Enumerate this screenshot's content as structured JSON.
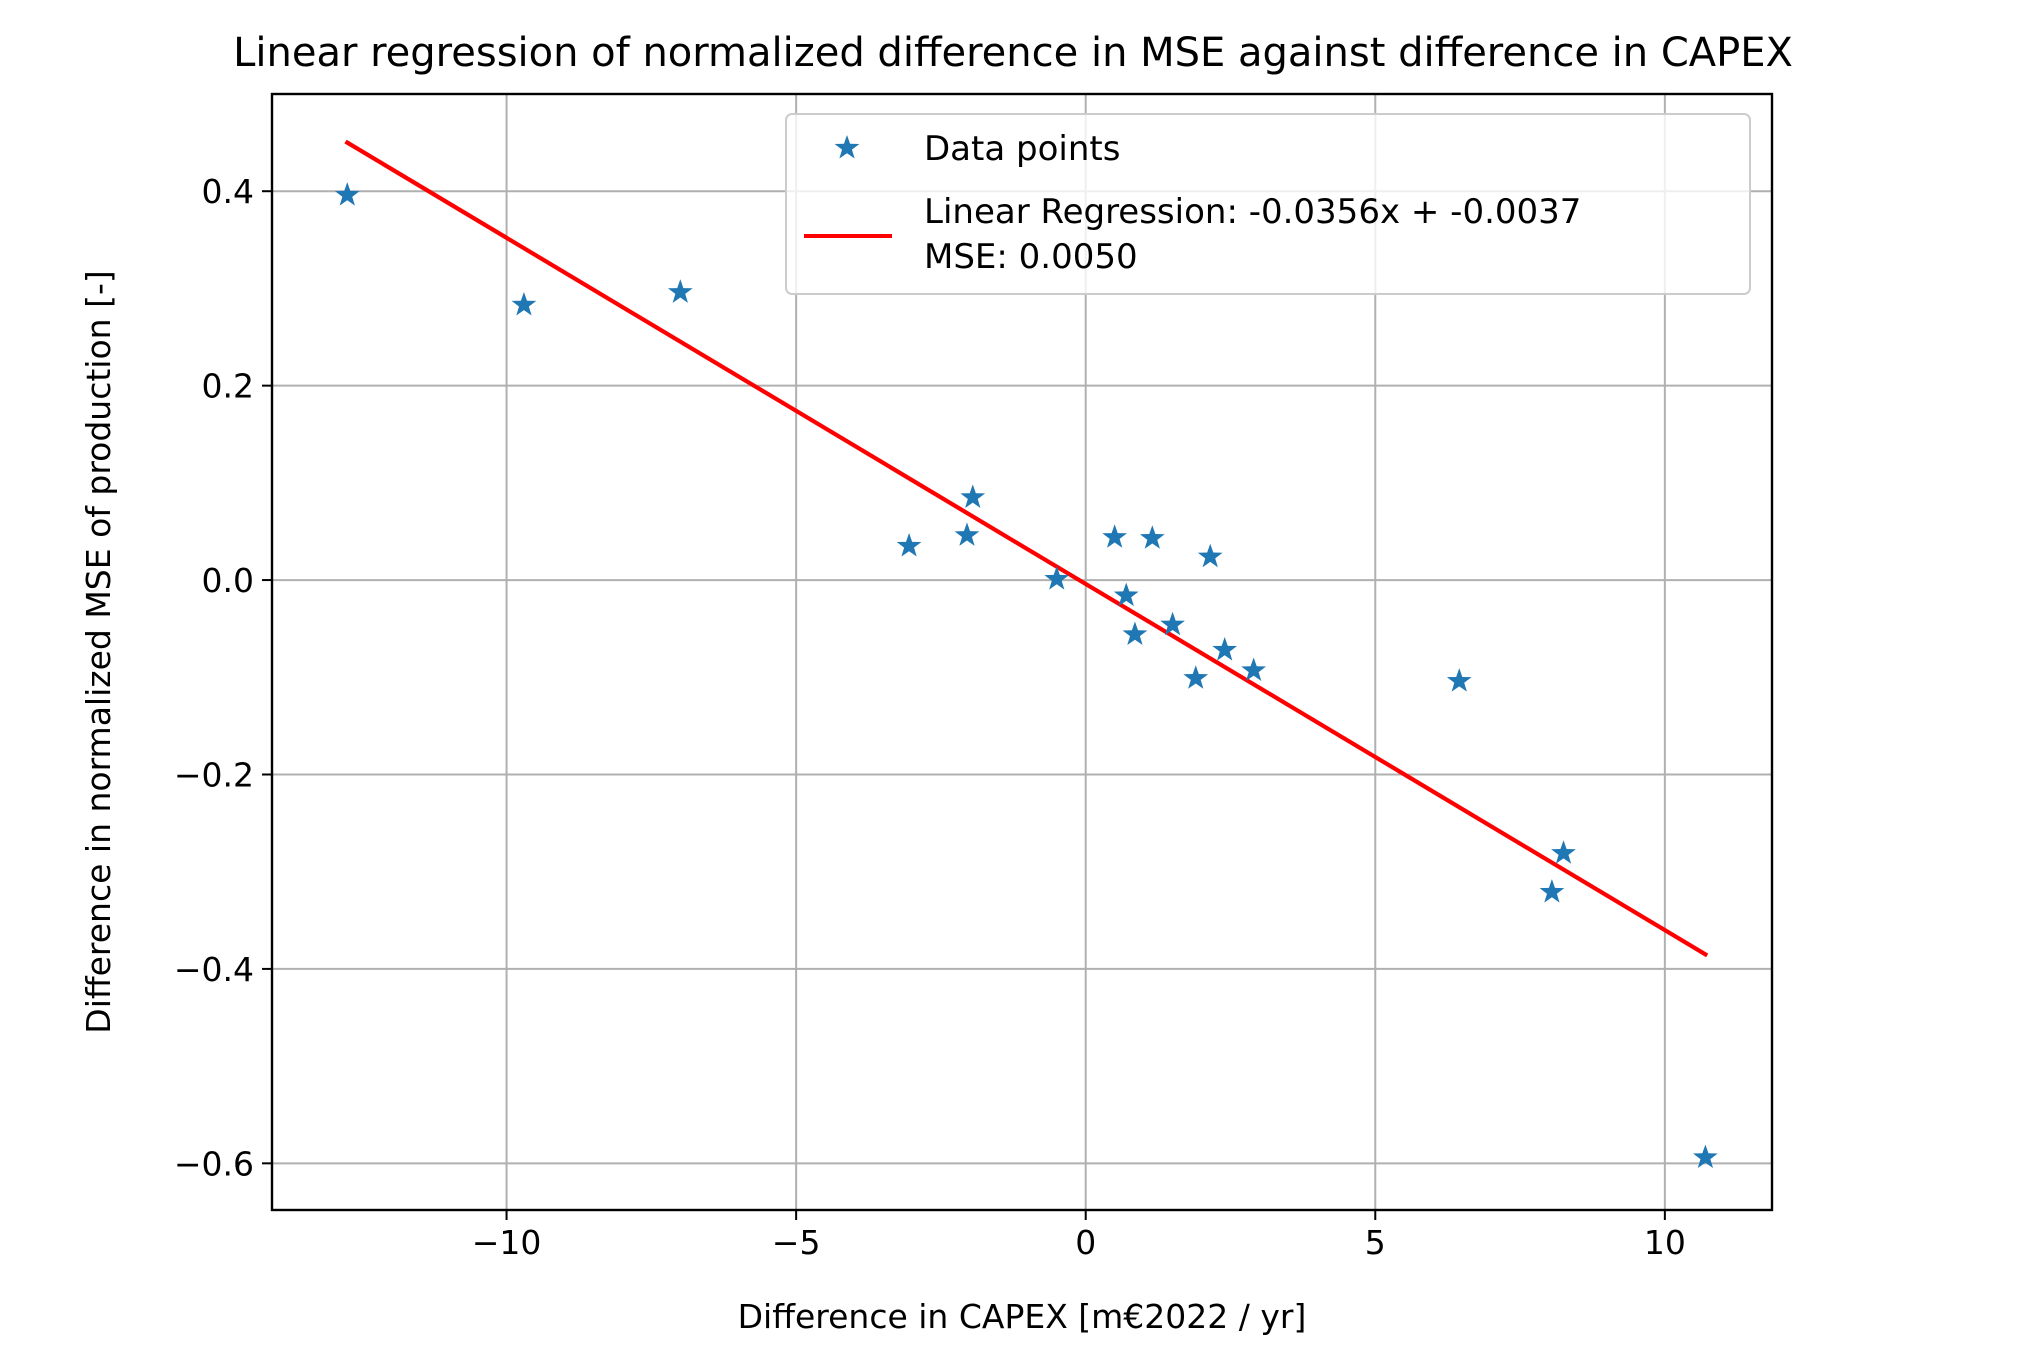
{
  "chart_data": {
    "type": "scatter",
    "title": "Linear regression of normalized difference in MSE against difference in CAPEX",
    "xlabel": "Difference in CAPEX [m€2022 / yr]",
    "ylabel": "Difference in normalized MSE of production [-]",
    "xlim": [
      -14.05,
      11.85
    ],
    "ylim": [
      -0.648,
      0.5
    ],
    "xticks": [
      -10,
      -5,
      0,
      5,
      10
    ],
    "xtick_labels": [
      "−10",
      "−5",
      "0",
      "5",
      "10"
    ],
    "yticks": [
      0.4,
      0.2,
      0.0,
      -0.2,
      -0.4,
      -0.6
    ],
    "ytick_labels": [
      "0.4",
      "0.2",
      "0.0",
      "−0.2",
      "−0.4",
      "−0.6"
    ],
    "grid": true,
    "legend_position": "top-right",
    "series": [
      {
        "name": "Data points",
        "kind": "scatter",
        "marker": "star",
        "color": "#1f77b4",
        "x": [
          -12.75,
          -9.7,
          -7.0,
          -3.05,
          -2.05,
          -1.95,
          -0.5,
          0.5,
          0.7,
          0.85,
          1.15,
          1.5,
          1.9,
          2.15,
          2.4,
          2.9,
          6.45,
          8.05,
          8.25,
          10.7
        ],
        "y": [
          0.396,
          0.283,
          0.296,
          0.035,
          0.046,
          0.085,
          0.001,
          0.044,
          -0.016,
          -0.056,
          0.043,
          -0.046,
          -0.101,
          0.024,
          -0.072,
          -0.093,
          -0.104,
          -0.321,
          -0.281,
          -0.594
        ]
      },
      {
        "name": "Linear Regression: -0.0356x + -0.0037",
        "name_line2": "MSE: 0.0050",
        "kind": "line",
        "color": "#ff0000",
        "x": [
          -12.75,
          10.7
        ],
        "y": [
          0.45,
          -0.385
        ]
      }
    ]
  }
}
